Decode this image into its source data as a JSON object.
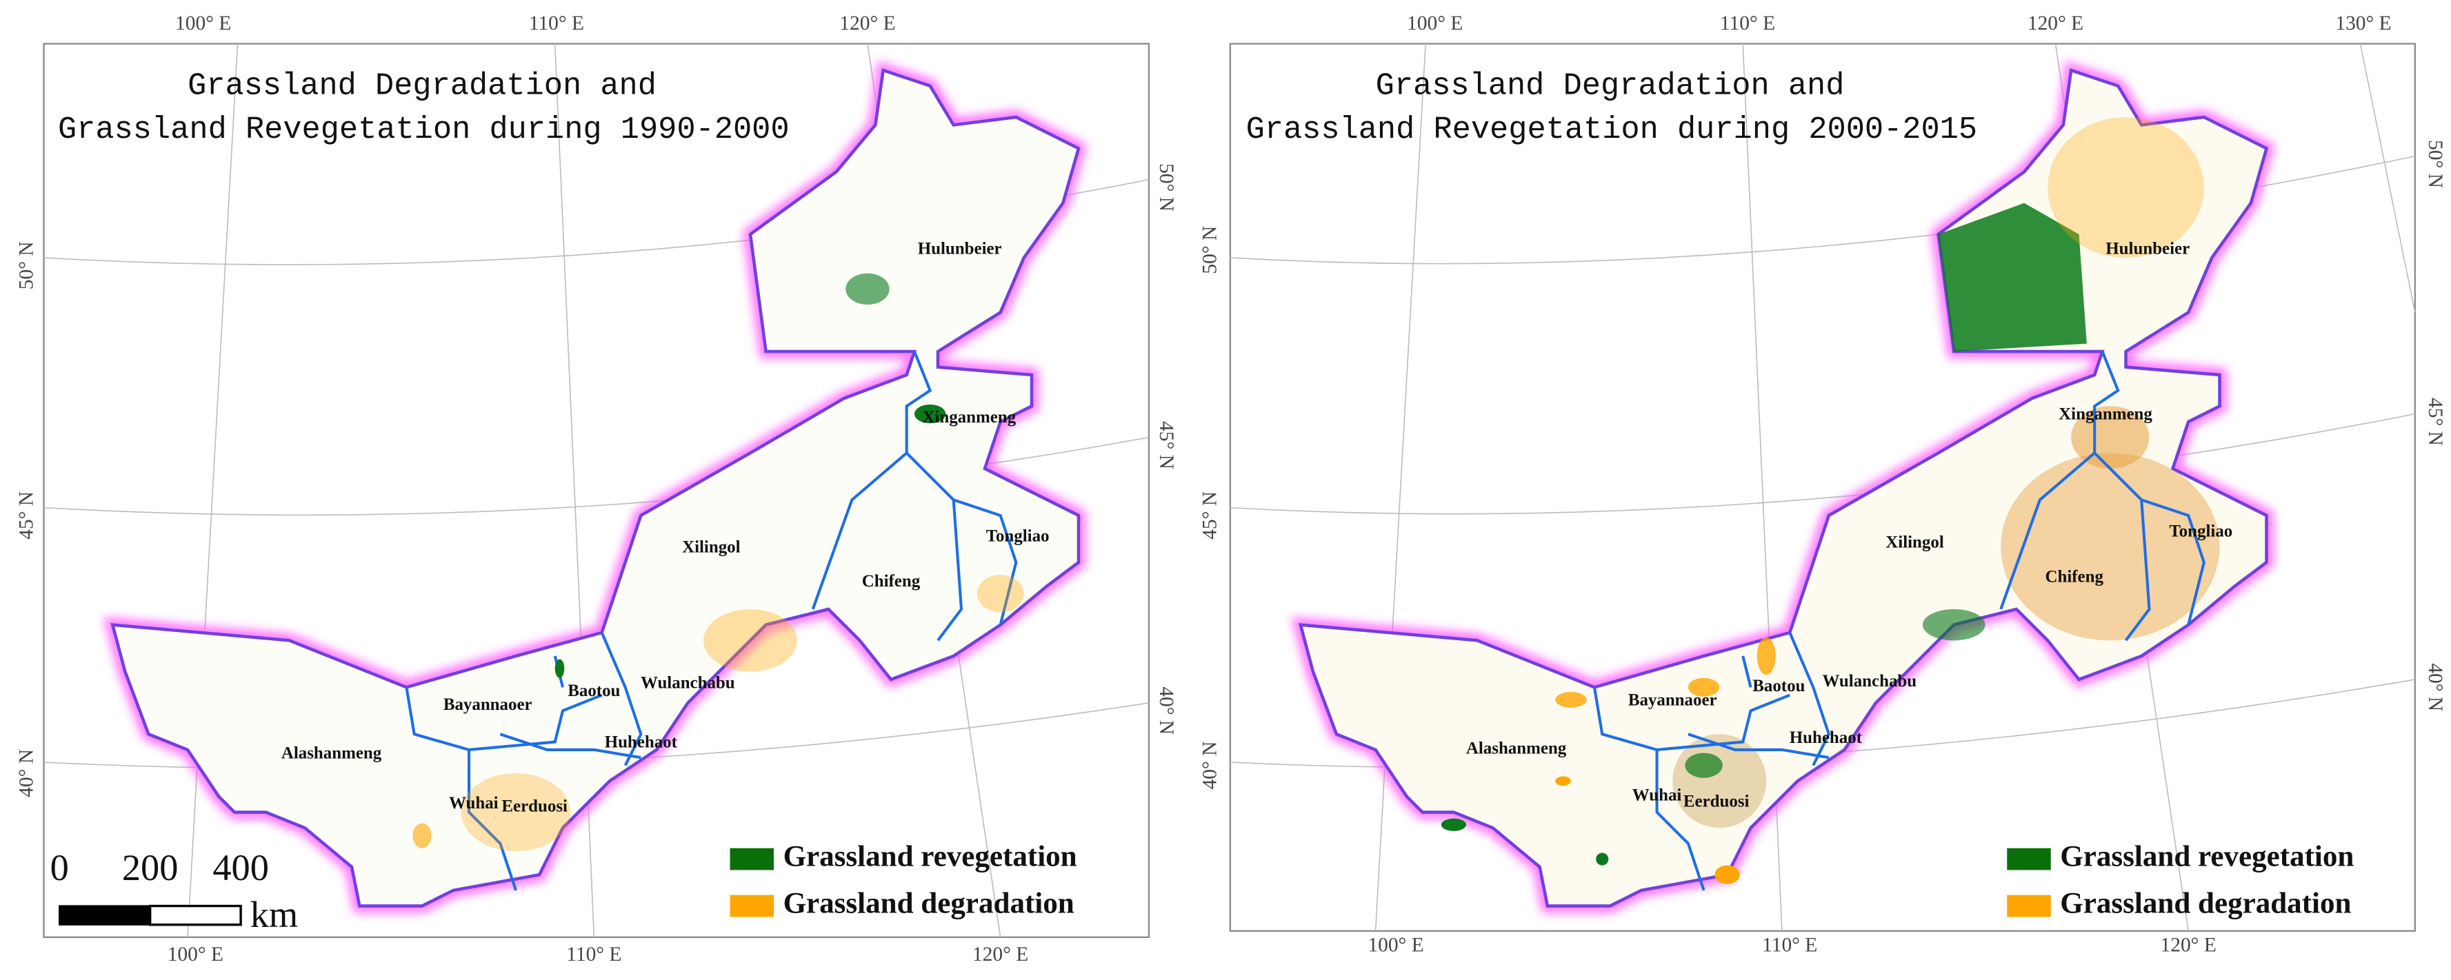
{
  "maps": [
    {
      "title": [
        "Grassland Degradation and",
        "Grassland Revegetation during 1990-2000"
      ],
      "regions": [
        "Hulunbeier",
        "Xinganmeng",
        "Tongliao",
        "Chifeng",
        "Xilingol",
        "Wulanchabu",
        "Baotou",
        "Huhehaot",
        "Bayannaoer",
        "Alashanmeng",
        "Wuhai",
        "Eerduosi"
      ],
      "top_labels": [
        "100° E",
        "110° E",
        "120° E"
      ],
      "bottom_labels": [
        "100° E",
        "110° E",
        "120° E"
      ],
      "left_labels": [
        "50° N",
        "45° N",
        "40° N"
      ],
      "right_labels": [
        "50° N",
        "45° N",
        "40° N"
      ],
      "legend": [
        "Grassland revegetation",
        "Grassland degradation"
      ],
      "scale_bar": {
        "ticks": [
          0,
          200,
          400
        ],
        "unit": "km"
      }
    },
    {
      "title": [
        "Grassland Degradation and",
        "Grassland Revegetation during 2000-2015"
      ],
      "regions": [
        "Hulunbeier",
        "Xinganmeng",
        "Tongliao",
        "Chifeng",
        "Xilingol",
        "Wulanchabu",
        "Baotou",
        "Huhehaot",
        "Bayannaoer",
        "Alashanmeng",
        "Wuhai",
        "Eerduosi"
      ],
      "top_labels": [
        "100° E",
        "110° E",
        "120° E",
        "130° E"
      ],
      "bottom_labels": [
        "100° E",
        "110° E",
        "120° E"
      ],
      "left_labels": [
        "50° N",
        "45° N",
        "40° N"
      ],
      "right_labels": [
        "50° N",
        "45° N",
        "40° N"
      ],
      "legend": [
        "Grassland revegetation",
        "Grassland degradation"
      ]
    }
  ]
}
